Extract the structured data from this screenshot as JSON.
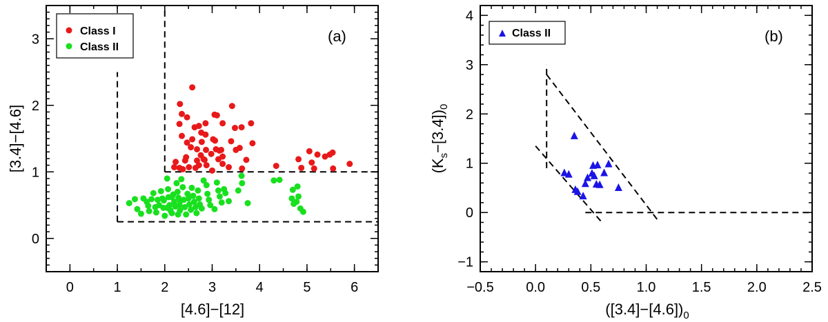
{
  "chart_data": [
    {
      "type": "scatter",
      "panel_label": "(a)",
      "xlabel": "[4.6]−[12]",
      "ylabel": "[3.4]−[4.6]",
      "xlim": [
        -0.5,
        6.5
      ],
      "ylim": [
        -0.5,
        3.5
      ],
      "xticks": [
        0,
        1,
        2,
        3,
        4,
        5,
        6
      ],
      "yticks": [
        0,
        1,
        2,
        3
      ],
      "xtick_labels": [
        "0",
        "1",
        "2",
        "3",
        "4",
        "5",
        "6"
      ],
      "ytick_labels": [
        "0",
        "1",
        "2",
        "3"
      ],
      "legend": "top-left",
      "boundaries": [
        {
          "x": [
            1.0,
            6.5
          ],
          "y": [
            0.25,
            0.25
          ]
        },
        {
          "x": [
            1.0,
            1.0
          ],
          "y": [
            0.25,
            2.5
          ]
        },
        {
          "x": [
            2.0,
            2.0
          ],
          "y": [
            1.0,
            3.5
          ]
        },
        {
          "x": [
            2.0,
            6.5
          ],
          "y": [
            1.0,
            1.0
          ]
        }
      ],
      "series": [
        {
          "name": "Class I",
          "color": "#e8191a",
          "marker": "circle",
          "points": [
            [
              2.58,
              2.27
            ],
            [
              2.32,
              2.02
            ],
            [
              2.36,
              1.87
            ],
            [
              2.47,
              1.82
            ],
            [
              2.31,
              1.72
            ],
            [
              2.63,
              1.67
            ],
            [
              2.72,
              1.69
            ],
            [
              2.86,
              1.73
            ],
            [
              2.77,
              1.59
            ],
            [
              2.86,
              1.56
            ],
            [
              3.05,
              1.86
            ],
            [
              3.1,
              1.85
            ],
            [
              3.42,
              1.99
            ],
            [
              3.22,
              1.73
            ],
            [
              3.48,
              1.66
            ],
            [
              3.62,
              1.67
            ],
            [
              3.4,
              1.46
            ],
            [
              3.58,
              1.36
            ],
            [
              3.82,
              1.73
            ],
            [
              3.85,
              1.43
            ],
            [
              2.36,
              1.54
            ],
            [
              2.47,
              1.44
            ],
            [
              2.78,
              1.45
            ],
            [
              3.02,
              1.49
            ],
            [
              3.08,
              1.34
            ],
            [
              3.15,
              1.32
            ],
            [
              3.06,
              1.47
            ],
            [
              3.22,
              1.23
            ],
            [
              2.68,
              1.34
            ],
            [
              2.55,
              1.37
            ],
            [
              2.58,
              1.49
            ],
            [
              2.87,
              1.33
            ],
            [
              2.76,
              1.25
            ],
            [
              2.68,
              1.17
            ],
            [
              2.82,
              1.19
            ],
            [
              2.72,
              1.1
            ],
            [
              2.45,
              1.22
            ],
            [
              2.43,
              1.17
            ],
            [
              2.31,
              1.06
            ],
            [
              2.23,
              1.15
            ],
            [
              2.38,
              1.04
            ],
            [
              2.51,
              1.07
            ],
            [
              2.88,
              1.1
            ],
            [
              3.22,
              1.12
            ],
            [
              3.0,
              1.02
            ],
            [
              3.35,
              1.07
            ],
            [
              3.63,
              1.05
            ],
            [
              3.72,
              1.18
            ],
            [
              3.13,
              1.19
            ],
            [
              3.19,
              1.33
            ],
            [
              2.84,
              1.18
            ],
            [
              2.65,
              1.06
            ],
            [
              2.2,
              1.07
            ],
            [
              2.98,
              1.27
            ],
            [
              3.5,
              1.33
            ],
            [
              4.35,
              1.09
            ],
            [
              4.88,
              1.06
            ],
            [
              5.05,
              1.31
            ],
            [
              5.1,
              1.14
            ],
            [
              5.15,
              1.05
            ],
            [
              5.22,
              1.26
            ],
            [
              5.38,
              1.23
            ],
            [
              5.48,
              1.26
            ],
            [
              5.54,
              1.29
            ],
            [
              5.55,
              1.05
            ],
            [
              5.9,
              1.12
            ],
            [
              4.82,
              1.19
            ]
          ]
        },
        {
          "name": "Class II",
          "color": "#19e01f",
          "marker": "circle",
          "points": [
            [
              1.25,
              0.53
            ],
            [
              1.37,
              0.59
            ],
            [
              1.42,
              0.44
            ],
            [
              1.5,
              0.37
            ],
            [
              1.55,
              0.6
            ],
            [
              1.62,
              0.55
            ],
            [
              1.65,
              0.49
            ],
            [
              1.67,
              0.41
            ],
            [
              1.72,
              0.59
            ],
            [
              1.76,
              0.68
            ],
            [
              1.8,
              0.47
            ],
            [
              1.82,
              0.39
            ],
            [
              1.85,
              0.58
            ],
            [
              1.88,
              0.5
            ],
            [
              1.92,
              0.71
            ],
            [
              1.95,
              0.6
            ],
            [
              1.97,
              0.46
            ],
            [
              2.0,
              0.34
            ],
            [
              2.05,
              0.9
            ],
            [
              2.07,
              0.74
            ],
            [
              2.08,
              0.62
            ],
            [
              2.1,
              0.5
            ],
            [
              2.12,
              0.42
            ],
            [
              2.15,
              0.38
            ],
            [
              2.18,
              0.66
            ],
            [
              2.2,
              0.55
            ],
            [
              2.22,
              0.48
            ],
            [
              2.25,
              0.83
            ],
            [
              2.27,
              0.7
            ],
            [
              2.29,
              0.61
            ],
            [
              2.31,
              0.5
            ],
            [
              2.32,
              0.42
            ],
            [
              2.35,
              0.89
            ],
            [
              2.38,
              0.77
            ],
            [
              2.4,
              0.58
            ],
            [
              2.42,
              0.47
            ],
            [
              2.45,
              0.36
            ],
            [
              2.48,
              0.67
            ],
            [
              2.5,
              0.6
            ],
            [
              2.52,
              0.51
            ],
            [
              2.55,
              0.43
            ],
            [
              2.57,
              0.76
            ],
            [
              2.6,
              0.64
            ],
            [
              2.62,
              0.55
            ],
            [
              2.65,
              0.47
            ],
            [
              2.67,
              0.38
            ],
            [
              2.7,
              0.72
            ],
            [
              2.72,
              0.6
            ],
            [
              2.74,
              0.51
            ],
            [
              2.78,
              0.45
            ],
            [
              2.82,
              0.87
            ],
            [
              2.05,
              0.46
            ],
            [
              2.15,
              0.62
            ],
            [
              2.28,
              0.36
            ],
            [
              1.98,
              0.57
            ],
            [
              2.33,
              0.56
            ],
            [
              2.88,
              0.8
            ],
            [
              2.9,
              0.67
            ],
            [
              2.93,
              0.58
            ],
            [
              2.96,
              0.5
            ],
            [
              3.05,
              0.44
            ],
            [
              3.1,
              0.84
            ],
            [
              3.13,
              0.72
            ],
            [
              3.16,
              0.63
            ],
            [
              3.2,
              0.54
            ],
            [
              3.25,
              0.74
            ],
            [
              3.28,
              0.68
            ],
            [
              3.35,
              0.56
            ],
            [
              3.55,
              0.72
            ],
            [
              3.62,
              0.94
            ],
            [
              3.63,
              0.83
            ],
            [
              3.75,
              0.53
            ],
            [
              4.3,
              0.87
            ],
            [
              4.42,
              0.88
            ],
            [
              4.7,
              0.73
            ],
            [
              4.8,
              0.78
            ],
            [
              4.68,
              0.6
            ],
            [
              4.72,
              0.52
            ],
            [
              4.78,
              0.55
            ],
            [
              4.82,
              0.63
            ],
            [
              4.86,
              0.45
            ],
            [
              4.92,
              0.4
            ]
          ]
        }
      ]
    },
    {
      "type": "scatter",
      "panel_label": "(b)",
      "xlabel": "([3.4]−[4.6])",
      "xlabel_sub": "0",
      "ylabel_main": "(K",
      "ylabel_sub_s": "s",
      "ylabel_mid": "−[3.4])",
      "ylabel_sub_0": "0",
      "xlim": [
        -0.5,
        2.5
      ],
      "ylim": [
        -1.2,
        4.2
      ],
      "xticks": [
        -0.5,
        0.0,
        0.5,
        1.0,
        1.5,
        2.0,
        2.5
      ],
      "yticks": [
        -1,
        0,
        1,
        2,
        3,
        4
      ],
      "xtick_labels": [
        "−0.5",
        "0.0",
        "0.5",
        "1.0",
        "1.5",
        "2.0",
        "2.5"
      ],
      "ytick_labels": [
        "−1",
        "0",
        "1",
        "2",
        "3",
        "4"
      ],
      "legend": "top-left",
      "boundaries": [
        {
          "x": [
            0.1,
            0.1
          ],
          "y": [
            0.9,
            3.0
          ]
        },
        {
          "x": [
            0.1,
            1.12
          ],
          "y": [
            2.8,
            -0.2
          ]
        },
        {
          "x": [
            0.0,
            0.6
          ],
          "y": [
            1.35,
            -0.2
          ]
        },
        {
          "x": [
            0.45,
            2.5
          ],
          "y": [
            0.0,
            0.0
          ]
        }
      ],
      "series": [
        {
          "name": "Class II",
          "color": "#1a14e6",
          "marker": "triangle",
          "points": [
            [
              0.35,
              1.55
            ],
            [
              0.26,
              0.8
            ],
            [
              0.3,
              0.77
            ],
            [
              0.36,
              0.46
            ],
            [
              0.38,
              0.42
            ],
            [
              0.43,
              0.33
            ],
            [
              0.45,
              0.58
            ],
            [
              0.47,
              0.7
            ],
            [
              0.51,
              0.79
            ],
            [
              0.52,
              0.95
            ],
            [
              0.53,
              0.74
            ],
            [
              0.55,
              0.57
            ],
            [
              0.56,
              0.96
            ],
            [
              0.58,
              0.56
            ],
            [
              0.62,
              0.8
            ],
            [
              0.66,
              0.98
            ],
            [
              0.75,
              0.5
            ]
          ]
        }
      ]
    }
  ]
}
